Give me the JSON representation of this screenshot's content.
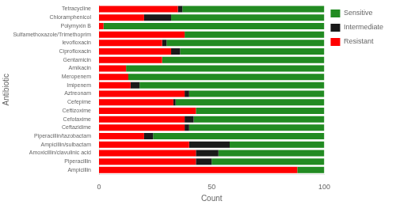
{
  "chart_data": {
    "type": "bar",
    "orientation": "horizontal",
    "stacked": true,
    "xlabel": "Count",
    "ylabel": "Antibiotic",
    "categories": [
      "Ampicillin",
      "Piperacillin",
      "Amoxicillin/clavulinic acid",
      "Ampicillin/sulbactam",
      "Piperacillin/tazobactam",
      "Ceftazidime",
      "Cefotaxime",
      "Ceftizoxime",
      "Cefepime",
      "Aztreonam",
      "Imipenem",
      "Meropenem",
      "Amikacin",
      "Gentamicin",
      "Ciprofloxacin",
      "levofloxacin",
      "Sulfamethoxazole/Trimethoprim",
      "Polymyxin B",
      "Chloramphenicol",
      "Tetracycline"
    ],
    "series": [
      {
        "name": "Resistant",
        "color": "#FF0000",
        "values": [
          88,
          43,
          43,
          40,
          20,
          38,
          38,
          43,
          33,
          38,
          14,
          13,
          12,
          28,
          32,
          28,
          38,
          2,
          20,
          35
        ]
      },
      {
        "name": "Intermediate",
        "color": "#1a1a1a",
        "values": [
          0,
          7,
          10,
          18,
          4,
          2,
          4,
          0,
          1,
          2,
          4,
          0,
          0,
          0,
          4,
          2,
          0,
          0,
          12,
          2
        ]
      },
      {
        "name": "Sensitive",
        "color": "#228B22",
        "values": [
          12,
          50,
          47,
          42,
          76,
          60,
          58,
          57,
          66,
          60,
          82,
          87,
          88,
          72,
          64,
          70,
          62,
          98,
          68,
          63
        ]
      }
    ],
    "xlim": [
      0,
      100
    ],
    "xticks": [
      0,
      50,
      100
    ],
    "grid": false,
    "legend": "upper right"
  }
}
